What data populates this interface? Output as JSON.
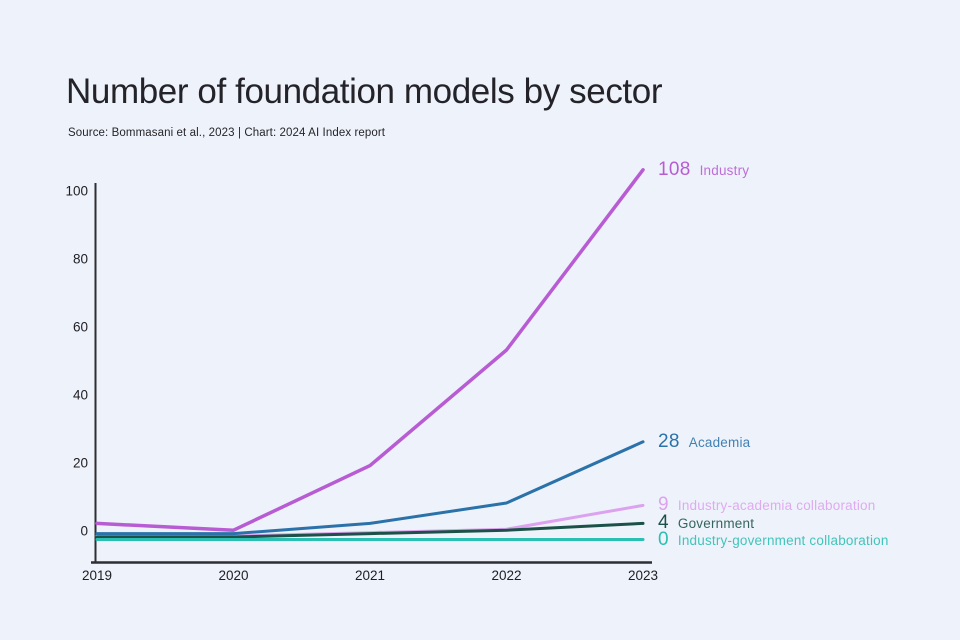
{
  "chart_data": {
    "type": "line",
    "title": "Number of foundation models by sector",
    "source": "Source: Bommasani et al., 2023 | Chart: 2024 AI Index report",
    "xlabel": "",
    "ylabel": "",
    "x": [
      "2019",
      "2020",
      "2021",
      "2022",
      "2023"
    ],
    "yticks": [
      0,
      20,
      40,
      60,
      80,
      100
    ],
    "ylim": [
      0,
      108
    ],
    "grid": false,
    "legend_position": "labels-at-line-ends-right",
    "background_color": "#eef2fa",
    "axis_color": "#2e2e33",
    "series": [
      {
        "name": "Industry",
        "values": [
          4,
          2,
          21,
          55,
          108
        ],
        "end_value_label": "108",
        "color": "#b85cd4"
      },
      {
        "name": "Academia",
        "values": [
          1,
          1,
          4,
          10,
          28
        ],
        "end_value_label": "28",
        "color": "#2a72a9"
      },
      {
        "name": "Industry-academia collaboration",
        "values": [
          0,
          0,
          1,
          2,
          9
        ],
        "end_value_label": "9",
        "color": "#dda2ef"
      },
      {
        "name": "Government",
        "values": [
          0,
          0,
          1,
          2,
          4
        ],
        "end_value_label": "4",
        "color": "#1b5148"
      },
      {
        "name": "Industry-government collaboration",
        "values": [
          0,
          0,
          0,
          0,
          0
        ],
        "end_value_label": "0",
        "color": "#29bfb3"
      }
    ]
  }
}
